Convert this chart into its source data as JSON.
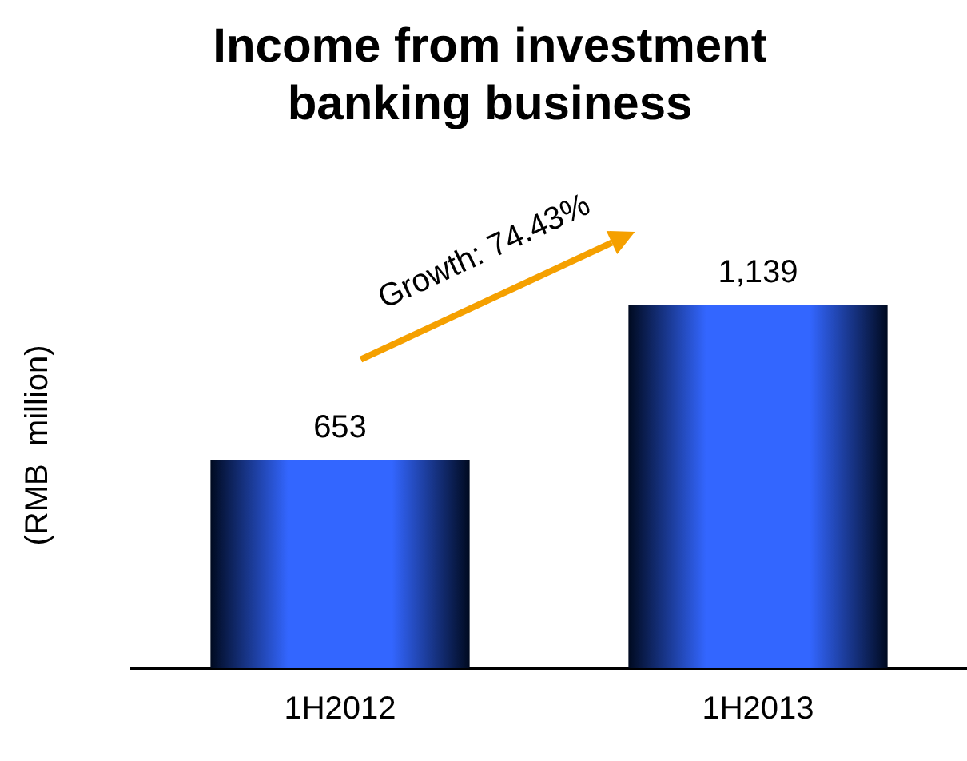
{
  "chart_data": {
    "type": "bar",
    "title": [
      "Income from investment",
      "banking business"
    ],
    "ylabel": "(RMB  million)",
    "categories": [
      "1H2012",
      "1H2013"
    ],
    "values": [
      653,
      1139
    ],
    "color": "#3366ff",
    "data_labels": true,
    "value_labels": [
      "653",
      "1,139"
    ],
    "legend": false,
    "grid": false,
    "annotations": [
      "Growth: 74.43%"
    ]
  }
}
